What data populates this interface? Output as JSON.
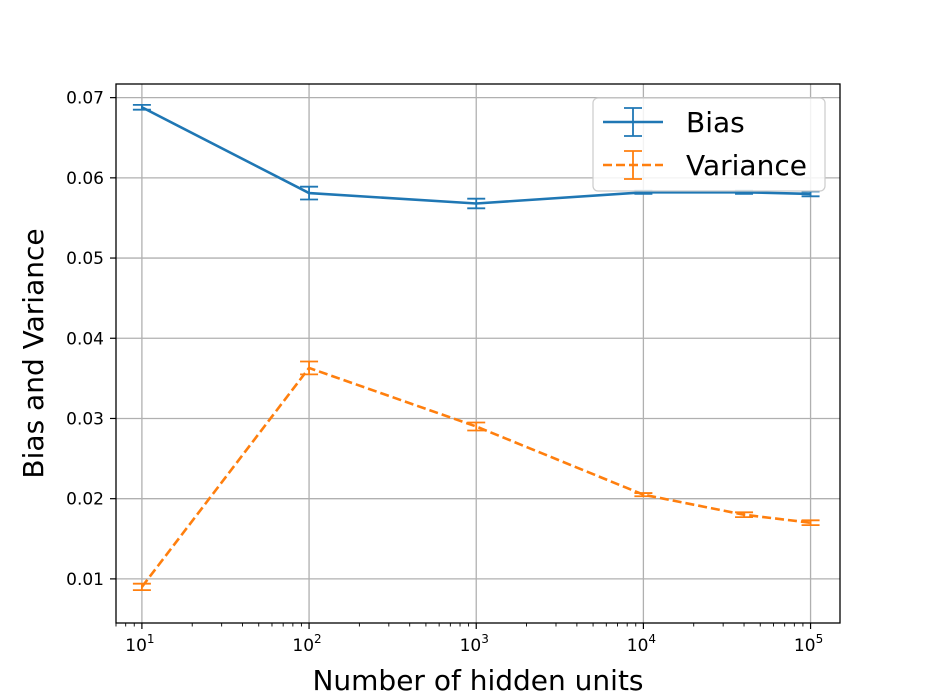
{
  "chart_data": {
    "type": "line",
    "title": "",
    "xlabel": "Number of hidden units",
    "ylabel": "Bias and Variance",
    "xscale": "log",
    "xlim": [
      7,
      150000
    ],
    "ylim": [
      0.0045,
      0.0717
    ],
    "grid": true,
    "legend_position": "top-right",
    "x_ticks": [
      {
        "base": "10",
        "exp": "1",
        "value": 10
      },
      {
        "base": "10",
        "exp": "2",
        "value": 100
      },
      {
        "base": "10",
        "exp": "3",
        "value": 1000
      },
      {
        "base": "10",
        "exp": "4",
        "value": 10000
      },
      {
        "base": "10",
        "exp": "5",
        "value": 100000
      }
    ],
    "y_ticks": [
      "0.01",
      "0.02",
      "0.03",
      "0.04",
      "0.05",
      "0.06",
      "0.07"
    ],
    "x": [
      10,
      100,
      1000,
      10000,
      40000,
      100000
    ],
    "series": [
      {
        "name": "Bias",
        "color": "#1f77b4",
        "linestyle": "solid",
        "values": [
          0.0688,
          0.0581,
          0.0568,
          0.0582,
          0.0582,
          0.058
        ],
        "errors": [
          0.0003,
          0.0008,
          0.0006,
          0.0002,
          0.0002,
          0.0003
        ]
      },
      {
        "name": "Variance",
        "color": "#ff7f0e",
        "linestyle": "dashed",
        "values": [
          0.009,
          0.0363,
          0.029,
          0.0205,
          0.018,
          0.017
        ],
        "errors": [
          0.0004,
          0.0008,
          0.0005,
          0.0002,
          0.0003,
          0.0003
        ]
      }
    ]
  }
}
